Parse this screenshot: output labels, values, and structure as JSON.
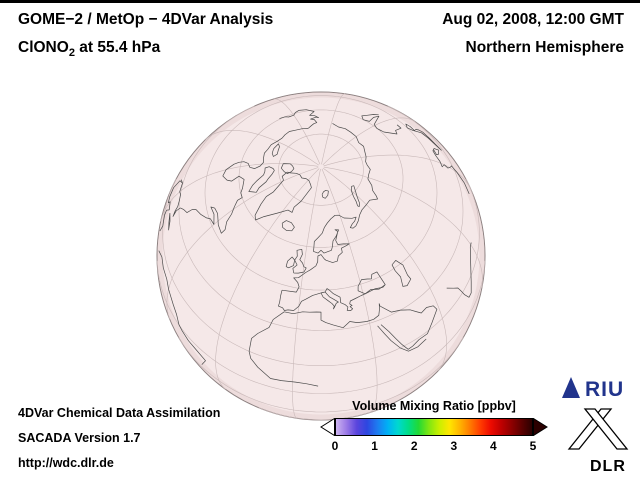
{
  "header": {
    "title": "GOME−2 / MetOp − 4DVar Analysis",
    "species_pre": "ClONO",
    "species_sub": "2",
    "species_post": " at 55.4 hPa",
    "datetime": "Aug 02, 2008, 12:00 GMT",
    "region": "Northern Hemisphere"
  },
  "globe": {
    "fill": "#f5e8e8",
    "rim": "#8d8181",
    "inner_rim": "#e6d2d2",
    "graticule_color": "#c9b9b9",
    "coast_color": "#4a4a4a"
  },
  "footer": {
    "line1": "4DVar Chemical Data Assimilation",
    "line2": "SACADA Version 1.7",
    "line3": "http://wdc.dlr.de"
  },
  "colorbar": {
    "title": "Volume Mixing Ratio [ppbv]",
    "min": 0,
    "max": 5,
    "unit": "ppbv",
    "ticks": [
      "0",
      "1",
      "2",
      "3",
      "4",
      "5"
    ],
    "gradient": [
      "#cdb4f0",
      "#9b7ae6",
      "#5b45dd",
      "#2e46e0",
      "#1e7bf0",
      "#00b0f5",
      "#00d8d0",
      "#00dd88",
      "#22d935",
      "#7fe612",
      "#c9ef00",
      "#ffe600",
      "#ffb400",
      "#ff7a00",
      "#ff3c00",
      "#ed0b00",
      "#c00000",
      "#8f0000",
      "#5c0000",
      "#2b0000"
    ]
  },
  "logos": {
    "riu_text": "RIU",
    "riu_color": "#21348c",
    "dlr_text": "DLR",
    "dlr_color": "#000000"
  }
}
